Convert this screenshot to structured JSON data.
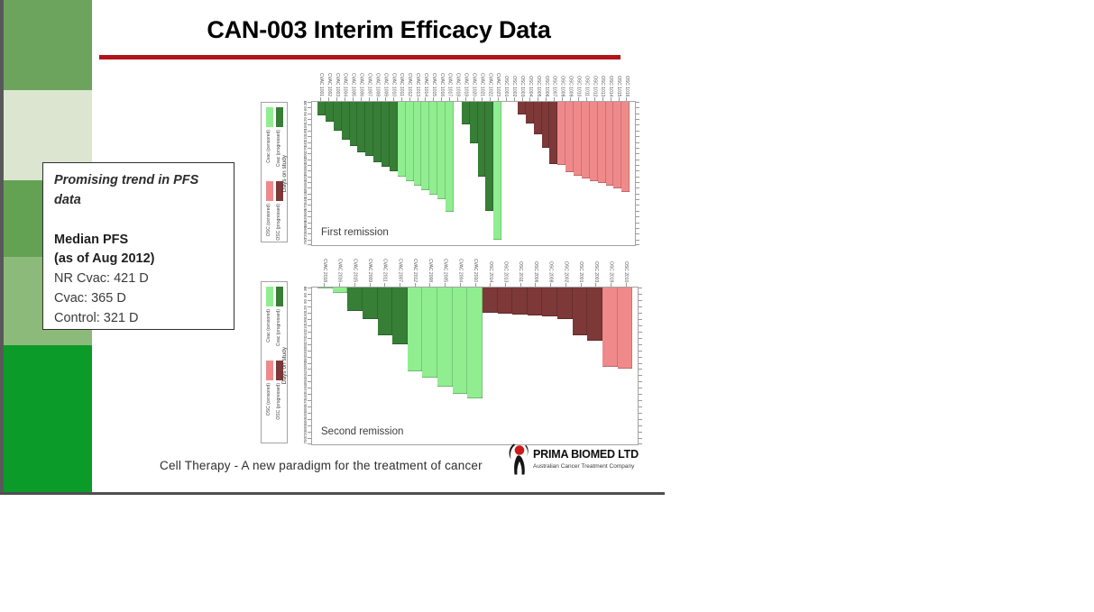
{
  "slide": {
    "title": "CAN-003 Interim Efficacy Data",
    "underline_color": "#b11419",
    "footer": "Cell Therapy - A new paradigm for the treatment of cancer"
  },
  "sidebar": {
    "strip_color": "#58585a",
    "bottom_line_color": "#4f4f51",
    "blocks": [
      {
        "color": "#6ca45e",
        "height": 100
      },
      {
        "color": "#dbe5d0",
        "height": 100
      },
      {
        "color": "#63a252",
        "height": 85
      },
      {
        "color": "#8cba7a",
        "height": 98
      },
      {
        "color": "#0a9b28",
        "height": 163
      }
    ]
  },
  "callout": {
    "heading": "Promising trend in PFS data",
    "median_label": "Median PFS",
    "median_date": "(as of Aug 2012)",
    "values": [
      "NR Cvac: 421 D",
      "Cvac: 365 D",
      "Control: 321 D"
    ]
  },
  "legend": {
    "entries": [
      {
        "label": "Cvac (censored)",
        "group": "cvac_censored",
        "color": "#90ee90"
      },
      {
        "label": "Cvac (progressed)",
        "group": "cvac_progressed",
        "color": "#377e37"
      },
      {
        "label": "OSC (censored)",
        "group": "osc_censored",
        "color": "#f08a8a"
      },
      {
        "label": "OSC (progressed)",
        "group": "osc_progressed",
        "color": "#7d3838"
      }
    ]
  },
  "logo": {
    "name": "PRIMA BIOMED LTD",
    "tagline": "Australian Cancer Treatment Company",
    "mark_color": "#cc1a1a",
    "figure_color": "#151515"
  },
  "chart_data": [
    {
      "type": "bar",
      "title": "First remission",
      "orientation": "bars-hang-down",
      "ylabel": "Days on study",
      "xlabel_meaning": "patient id (rotated tick labels)",
      "ylim": [
        0,
        750
      ],
      "tick_step": 30,
      "grid": false,
      "legend_position": "left",
      "colors": {
        "cvac_censored": "#90ee90",
        "cvac_progressed": "#377e37",
        "osc_censored": "#f08a8a",
        "osc_progressed": "#7d3838",
        "gap": "transparent"
      },
      "bars": [
        {
          "label": "CVAC 1001",
          "group": "cvac_progressed",
          "days": 70
        },
        {
          "label": "CVAC 1002",
          "group": "cvac_progressed",
          "days": 105
        },
        {
          "label": "CVAC 1003",
          "group": "cvac_progressed",
          "days": 150
        },
        {
          "label": "CVAC 1004",
          "group": "cvac_progressed",
          "days": 200
        },
        {
          "label": "CVAC 1005",
          "group": "cvac_progressed",
          "days": 230
        },
        {
          "label": "CVAC 1006",
          "group": "cvac_progressed",
          "days": 265
        },
        {
          "label": "CVAC 1007",
          "group": "cvac_progressed",
          "days": 285
        },
        {
          "label": "CVAC 1008",
          "group": "cvac_progressed",
          "days": 315
        },
        {
          "label": "CVAC 1009",
          "group": "cvac_progressed",
          "days": 340
        },
        {
          "label": "CVAC 1010",
          "group": "cvac_progressed",
          "days": 365
        },
        {
          "label": "CVAC 1011",
          "group": "cvac_censored",
          "days": 390
        },
        {
          "label": "CVAC 1012",
          "group": "cvac_censored",
          "days": 415
        },
        {
          "label": "CVAC 1013",
          "group": "cvac_censored",
          "days": 440
        },
        {
          "label": "CVAC 1014",
          "group": "cvac_censored",
          "days": 460
        },
        {
          "label": "CVAC 1015",
          "group": "cvac_censored",
          "days": 485
        },
        {
          "label": "CVAC 1016",
          "group": "cvac_censored",
          "days": 510
        },
        {
          "label": "CVAC 1017",
          "group": "cvac_censored",
          "days": 575
        },
        {
          "label": "CVAC 1018",
          "group": "gap",
          "days": 0
        },
        {
          "label": "CVAC 1019",
          "group": "cvac_progressed",
          "days": 120
        },
        {
          "label": "CVAC 1020",
          "group": "cvac_progressed",
          "days": 215
        },
        {
          "label": "CVAC 1021",
          "group": "cvac_progressed",
          "days": 390
        },
        {
          "label": "CVAC 1022",
          "group": "cvac_progressed",
          "days": 570
        },
        {
          "label": "CVAC 1023",
          "group": "cvac_censored",
          "days": 720
        },
        {
          "label": "OSC 1001",
          "group": "gap",
          "days": 0
        },
        {
          "label": "OSC 1002",
          "group": "gap",
          "days": 0
        },
        {
          "label": "OSC 1003",
          "group": "osc_progressed",
          "days": 65
        },
        {
          "label": "OSC 1004",
          "group": "osc_progressed",
          "days": 115
        },
        {
          "label": "OSC 1005",
          "group": "osc_progressed",
          "days": 170
        },
        {
          "label": "OSC 1006",
          "group": "osc_progressed",
          "days": 240
        },
        {
          "label": "OSC 1007",
          "group": "osc_progressed",
          "days": 325
        },
        {
          "label": "OSC 1008",
          "group": "osc_censored",
          "days": 330
        },
        {
          "label": "OSC 1009",
          "group": "osc_censored",
          "days": 370
        },
        {
          "label": "OSC 1010",
          "group": "osc_censored",
          "days": 385
        },
        {
          "label": "OSC 1011",
          "group": "osc_censored",
          "days": 400
        },
        {
          "label": "OSC 1012",
          "group": "osc_censored",
          "days": 415
        },
        {
          "label": "OSC 1013",
          "group": "osc_censored",
          "days": 425
        },
        {
          "label": "OSC 1014",
          "group": "osc_censored",
          "days": 440
        },
        {
          "label": "OSC 1015",
          "group": "osc_censored",
          "days": 455
        },
        {
          "label": "OSC 1016",
          "group": "osc_censored",
          "days": 470
        }
      ]
    },
    {
      "type": "bar",
      "title": "Second remission",
      "orientation": "bars-hang-down",
      "ylabel": "Days on study",
      "xlabel_meaning": "patient id (rotated tick labels)",
      "ylim": [
        0,
        750
      ],
      "tick_step": 30,
      "grid": false,
      "legend_position": "left",
      "colors": {
        "cvac_censored": "#90ee90",
        "cvac_progressed": "#377e37",
        "osc_censored": "#f08a8a",
        "osc_progressed": "#7d3838",
        "gap": "transparent"
      },
      "bars": [
        {
          "label": "CVAC 2018",
          "group": "cvac_censored",
          "days": 5
        },
        {
          "label": "CVAC 2016",
          "group": "cvac_censored",
          "days": 27
        },
        {
          "label": "CVAC 2015",
          "group": "cvac_progressed",
          "days": 110
        },
        {
          "label": "CVAC 2009",
          "group": "cvac_progressed",
          "days": 150
        },
        {
          "label": "CVAC 2011",
          "group": "cvac_progressed",
          "days": 230
        },
        {
          "label": "CVAC 2007",
          "group": "cvac_progressed",
          "days": 270
        },
        {
          "label": "CVAC 2012",
          "group": "cvac_censored",
          "days": 400
        },
        {
          "label": "CVAC 2008",
          "group": "cvac_censored",
          "days": 430
        },
        {
          "label": "CVAC 2005",
          "group": "cvac_censored",
          "days": 475
        },
        {
          "label": "CVAC 2004",
          "group": "cvac_censored",
          "days": 510
        },
        {
          "label": "CVAC 2010",
          "group": "cvac_censored",
          "days": 530
        },
        {
          "label": "OSC 2014",
          "group": "osc_progressed",
          "days": 120
        },
        {
          "label": "OSC 2013",
          "group": "osc_progressed",
          "days": 125
        },
        {
          "label": "OSC 2011",
          "group": "osc_progressed",
          "days": 130
        },
        {
          "label": "OSC 2006",
          "group": "osc_progressed",
          "days": 135
        },
        {
          "label": "OSC 2008",
          "group": "osc_progressed",
          "days": 140
        },
        {
          "label": "OSC 2002",
          "group": "osc_progressed",
          "days": 150
        },
        {
          "label": "OSC 2001",
          "group": "osc_progressed",
          "days": 230
        },
        {
          "label": "OSC 2003",
          "group": "osc_progressed",
          "days": 255
        },
        {
          "label": "OSC 2019",
          "group": "osc_censored",
          "days": 380
        },
        {
          "label": "OSC 2010",
          "group": "osc_censored",
          "days": 390
        }
      ]
    }
  ]
}
